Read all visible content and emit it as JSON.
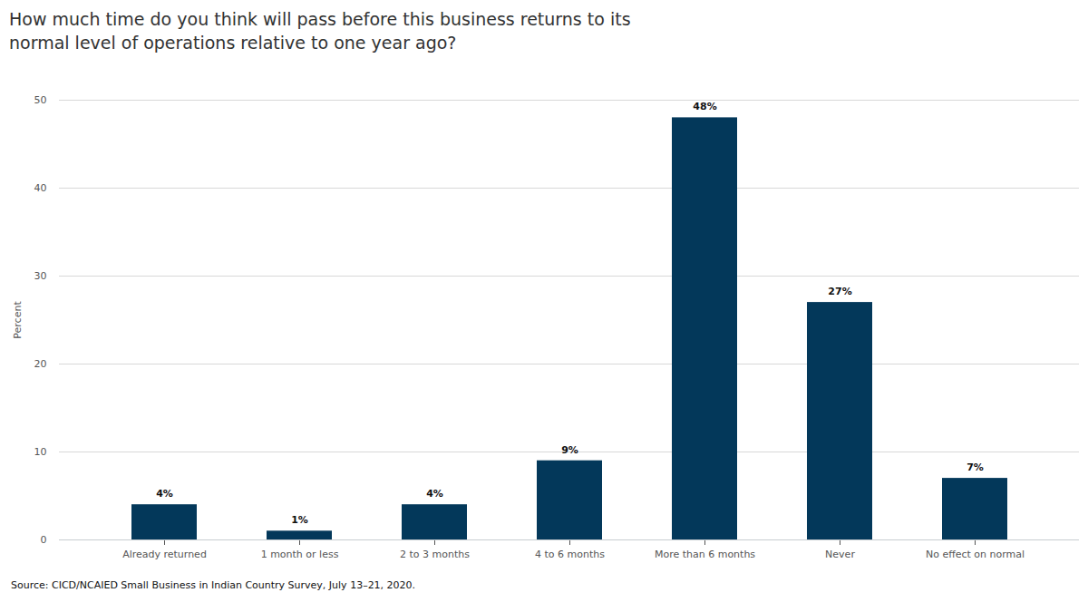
{
  "chart_data": {
    "type": "bar",
    "title": "How much time do you think will pass before this business returns to its\nnormal level of operations relative to one year ago?",
    "y_label": "Percent",
    "categories": [
      "Already returned",
      "1 month or less",
      "2 to 3 months",
      "4 to 6 months",
      "More than 6 months",
      "Never",
      "No effect on normal"
    ],
    "values": [
      4,
      1,
      4,
      9,
      48,
      27,
      7
    ],
    "value_labels": [
      "4%",
      "1%",
      "4%",
      "9%",
      "48%",
      "27%",
      "7%"
    ],
    "color": "#03385a",
    "ylim": [
      0,
      50
    ],
    "yticks": [
      0,
      10,
      20,
      30,
      40,
      50
    ],
    "grid": true,
    "data_labels": true,
    "source": "Source: CICD/NCAIED Small Business in Indian Country Survey, July 13–21, 2020."
  }
}
